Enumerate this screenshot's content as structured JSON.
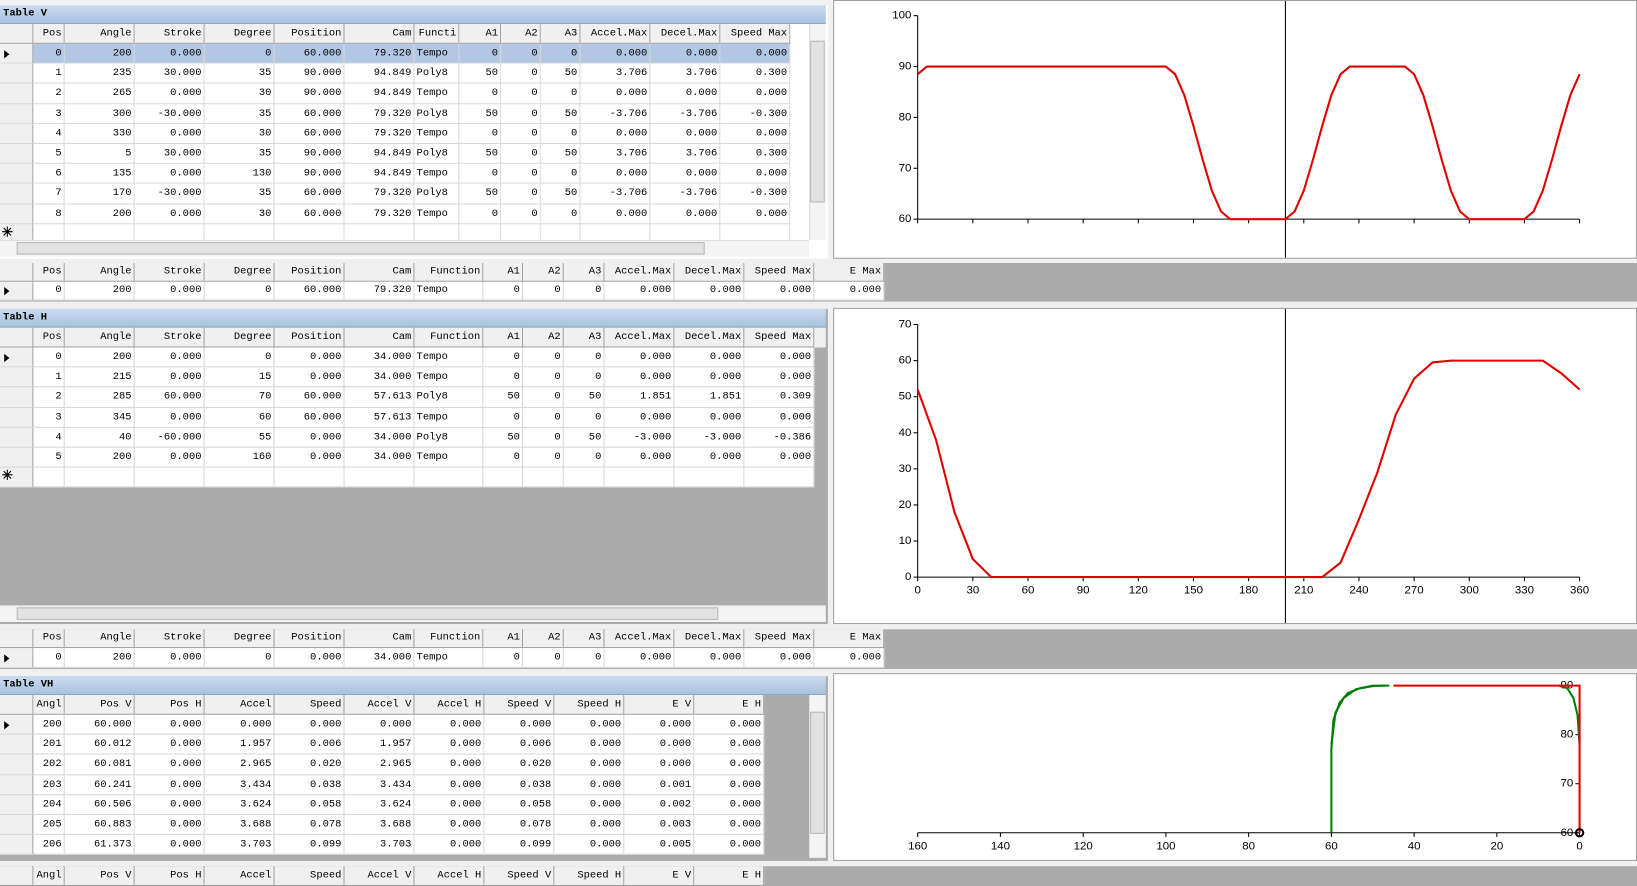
{
  "table_v": {
    "title": "Table V",
    "columns": [
      "Pos",
      "Angle",
      "Stroke",
      "Degree",
      "Position",
      "Cam",
      "Functi",
      "A1",
      "A2",
      "A3",
      "Accel.Max",
      "Decel.Max",
      "Speed Max"
    ],
    "rows": [
      [
        "0",
        "200",
        "0.000",
        "0",
        "60.000",
        "79.320",
        "Tempo",
        "0",
        "0",
        "0",
        "0.000",
        "0.000",
        "0.000"
      ],
      [
        "1",
        "235",
        "30.000",
        "35",
        "90.000",
        "94.849",
        "Poly8",
        "50",
        "0",
        "50",
        "3.706",
        "3.706",
        "0.300"
      ],
      [
        "2",
        "265",
        "0.000",
        "30",
        "90.000",
        "94.849",
        "Tempo",
        "0",
        "0",
        "0",
        "0.000",
        "0.000",
        "0.000"
      ],
      [
        "3",
        "300",
        "-30.000",
        "35",
        "60.000",
        "79.320",
        "Poly8",
        "50",
        "0",
        "50",
        "-3.706",
        "-3.706",
        "-0.300"
      ],
      [
        "4",
        "330",
        "0.000",
        "30",
        "60.000",
        "79.320",
        "Tempo",
        "0",
        "0",
        "0",
        "0.000",
        "0.000",
        "0.000"
      ],
      [
        "5",
        "5",
        "30.000",
        "35",
        "90.000",
        "94.849",
        "Poly8",
        "50",
        "0",
        "50",
        "3.706",
        "3.706",
        "0.300"
      ],
      [
        "6",
        "135",
        "0.000",
        "130",
        "90.000",
        "94.849",
        "Tempo",
        "0",
        "0",
        "0",
        "0.000",
        "0.000",
        "0.000"
      ],
      [
        "7",
        "170",
        "-30.000",
        "35",
        "60.000",
        "79.320",
        "Poly8",
        "50",
        "0",
        "50",
        "-3.706",
        "-3.706",
        "-0.300"
      ],
      [
        "8",
        "200",
        "0.000",
        "30",
        "60.000",
        "79.320",
        "Tempo",
        "0",
        "0",
        "0",
        "0.000",
        "0.000",
        "0.000"
      ]
    ]
  },
  "summary_v": {
    "columns": [
      "Pos",
      "Angle",
      "Stroke",
      "Degree",
      "Position",
      "Cam",
      "Function",
      "A1",
      "A2",
      "A3",
      "Accel.Max",
      "Decel.Max",
      "Speed Max",
      "E Max"
    ],
    "rows": [
      [
        "0",
        "200",
        "0.000",
        "0",
        "60.000",
        "79.320",
        "Tempo",
        "0",
        "0",
        "0",
        "0.000",
        "0.000",
        "0.000",
        "0.000"
      ]
    ]
  },
  "table_h": {
    "title": "Table H",
    "columns": [
      "Pos",
      "Angle",
      "Stroke",
      "Degree",
      "Position",
      "Cam",
      "Function",
      "A1",
      "A2",
      "A3",
      "Accel.Max",
      "Decel.Max",
      "Speed Max"
    ],
    "rows": [
      [
        "0",
        "200",
        "0.000",
        "0",
        "0.000",
        "34.000",
        "Tempo",
        "0",
        "0",
        "0",
        "0.000",
        "0.000",
        "0.000"
      ],
      [
        "1",
        "215",
        "0.000",
        "15",
        "0.000",
        "34.000",
        "Tempo",
        "0",
        "0",
        "0",
        "0.000",
        "0.000",
        "0.000"
      ],
      [
        "2",
        "285",
        "60.000",
        "70",
        "60.000",
        "57.613",
        "Poly8",
        "50",
        "0",
        "50",
        "1.851",
        "1.851",
        "0.309"
      ],
      [
        "3",
        "345",
        "0.000",
        "60",
        "60.000",
        "57.613",
        "Tempo",
        "0",
        "0",
        "0",
        "0.000",
        "0.000",
        "0.000"
      ],
      [
        "4",
        "40",
        "-60.000",
        "55",
        "0.000",
        "34.000",
        "Poly8",
        "50",
        "0",
        "50",
        "-3.000",
        "-3.000",
        "-0.386"
      ],
      [
        "5",
        "200",
        "0.000",
        "160",
        "0.000",
        "34.000",
        "Tempo",
        "0",
        "0",
        "0",
        "0.000",
        "0.000",
        "0.000"
      ]
    ]
  },
  "summary_h": {
    "columns": [
      "Pos",
      "Angle",
      "Stroke",
      "Degree",
      "Position",
      "Cam",
      "Function",
      "A1",
      "A2",
      "A3",
      "Accel.Max",
      "Decel.Max",
      "Speed Max",
      "E Max"
    ],
    "rows": [
      [
        "0",
        "200",
        "0.000",
        "0",
        "0.000",
        "34.000",
        "Tempo",
        "0",
        "0",
        "0",
        "0.000",
        "0.000",
        "0.000",
        "0.000"
      ]
    ]
  },
  "table_vh": {
    "title": "Table VH",
    "columns": [
      "Angl",
      "Pos V",
      "Pos H",
      "Accel",
      "Speed",
      "Accel V",
      "Accel H",
      "Speed V",
      "Speed H",
      "E V",
      "E H"
    ],
    "rows": [
      [
        "200",
        "60.000",
        "0.000",
        "0.000",
        "0.000",
        "0.000",
        "0.000",
        "0.000",
        "0.000",
        "0.000",
        "0.000"
      ],
      [
        "201",
        "60.012",
        "0.000",
        "1.957",
        "0.006",
        "1.957",
        "0.000",
        "0.006",
        "0.000",
        "0.000",
        "0.000"
      ],
      [
        "202",
        "60.081",
        "0.000",
        "2.965",
        "0.020",
        "2.965",
        "0.000",
        "0.020",
        "0.000",
        "0.000",
        "0.000"
      ],
      [
        "203",
        "60.241",
        "0.000",
        "3.434",
        "0.038",
        "3.434",
        "0.000",
        "0.038",
        "0.000",
        "0.001",
        "0.000"
      ],
      [
        "204",
        "60.506",
        "0.000",
        "3.624",
        "0.058",
        "3.624",
        "0.000",
        "0.058",
        "0.000",
        "0.002",
        "0.000"
      ],
      [
        "205",
        "60.883",
        "0.000",
        "3.688",
        "0.078",
        "3.688",
        "0.000",
        "0.078",
        "0.000",
        "0.003",
        "0.000"
      ],
      [
        "206",
        "61.373",
        "0.000",
        "3.703",
        "0.099",
        "3.703",
        "0.000",
        "0.099",
        "0.000",
        "0.005",
        "0.000"
      ]
    ]
  },
  "summary_vh": {
    "columns": [
      "Angl",
      "Pos V",
      "Pos H",
      "Accel",
      "Speed",
      "Accel V",
      "Accel H",
      "Speed V",
      "Speed H",
      "E V",
      "E H"
    ]
  },
  "chart_data": [
    {
      "type": "line",
      "xlim": [
        0,
        360
      ],
      "xticks": [
        0,
        30,
        60,
        90,
        120,
        150,
        180,
        210,
        240,
        270,
        300,
        330,
        360
      ],
      "show_xtick_labels": false,
      "ylim": [
        60,
        100
      ],
      "yticks": [
        60,
        70,
        80,
        90,
        100
      ],
      "yaxis_side": "left",
      "cursor_x": 200,
      "x": [
        0,
        5,
        10,
        15,
        20,
        25,
        30,
        35,
        40,
        45,
        50,
        55,
        60,
        65,
        70,
        75,
        80,
        85,
        90,
        95,
        100,
        105,
        110,
        115,
        120,
        125,
        130,
        135,
        140,
        145,
        150,
        155,
        160,
        165,
        170,
        175,
        180,
        185,
        190,
        195,
        200,
        205,
        210,
        215,
        220,
        225,
        230,
        235,
        240,
        245,
        250,
        255,
        260,
        265,
        270,
        275,
        280,
        285,
        290,
        295,
        300,
        305,
        310,
        315,
        320,
        325,
        330,
        335,
        340,
        345,
        350,
        355,
        360
      ],
      "series": [
        {
          "color": "#e00000",
          "values": [
            88.5,
            90,
            90,
            90,
            90,
            90,
            90,
            90,
            90,
            90,
            90,
            90,
            90,
            90,
            90,
            90,
            90,
            90,
            90,
            90,
            90,
            90,
            90,
            90,
            90,
            90,
            90,
            90,
            88.5,
            84.4,
            78.3,
            71.7,
            65.6,
            61.5,
            60,
            60,
            60,
            60,
            60,
            60,
            60,
            61.5,
            65.6,
            71.7,
            78.3,
            84.4,
            88.5,
            90,
            90,
            90,
            90,
            90,
            90,
            90,
            88.5,
            84.4,
            78.3,
            71.7,
            65.6,
            61.5,
            60,
            60,
            60,
            60,
            60,
            60,
            60,
            61.5,
            65.6,
            71.7,
            78.3,
            84.4,
            88.5
          ]
        }
      ]
    },
    {
      "type": "line",
      "xlim": [
        0,
        360
      ],
      "xticks": [
        0,
        30,
        60,
        90,
        120,
        150,
        180,
        210,
        240,
        270,
        300,
        330,
        360
      ],
      "show_xtick_labels": true,
      "ylim": [
        0,
        70
      ],
      "yticks": [
        0,
        10,
        20,
        30,
        40,
        50,
        60,
        70
      ],
      "yaxis_side": "left",
      "cursor_x": 200,
      "x": [
        0,
        10,
        20,
        30,
        40,
        50,
        60,
        70,
        80,
        90,
        100,
        110,
        120,
        130,
        140,
        150,
        160,
        170,
        180,
        190,
        200,
        210,
        220,
        230,
        240,
        250,
        260,
        270,
        280,
        290,
        300,
        310,
        320,
        330,
        340,
        350,
        360
      ],
      "series": [
        {
          "color": "#e00000",
          "values": [
            52,
            38,
            18,
            5,
            0,
            0,
            0,
            0,
            0,
            0,
            0,
            0,
            0,
            0,
            0,
            0,
            0,
            0,
            0,
            0,
            0,
            0,
            0,
            4,
            16,
            29,
            45,
            55,
            59.5,
            60,
            60,
            60,
            60,
            60,
            60,
            56.5,
            52
          ]
        }
      ]
    },
    {
      "type": "line",
      "xlim": [
        160,
        0
      ],
      "xticks": [
        160,
        140,
        120,
        100,
        80,
        60,
        40,
        20,
        0
      ],
      "show_xtick_labels": true,
      "ylim": [
        60,
        90
      ],
      "yticks": [
        60,
        70,
        80,
        90
      ],
      "yaxis_side": "right",
      "series": [
        {
          "color": "#008000",
          "x": [
            60,
            60,
            59.5,
            58,
            56,
            53,
            50,
            46
          ],
          "values": [
            60,
            77,
            83,
            86.5,
            88.5,
            89.5,
            90,
            90
          ]
        },
        {
          "color": "#008000",
          "x": [
            60,
            59,
            57,
            54,
            50,
            47
          ],
          "values": [
            78,
            84.5,
            87.5,
            89.3,
            89.9,
            90
          ]
        },
        {
          "color": "#008000",
          "x": [
            0,
            0.5,
            1.5,
            3,
            5
          ],
          "values": [
            78,
            84,
            87.5,
            89.5,
            90
          ]
        },
        {
          "color": "#e00000",
          "x": [
            45,
            0,
            0
          ],
          "values": [
            90,
            90,
            60
          ]
        }
      ],
      "marker": {
        "x": 0,
        "y": 60
      }
    }
  ]
}
